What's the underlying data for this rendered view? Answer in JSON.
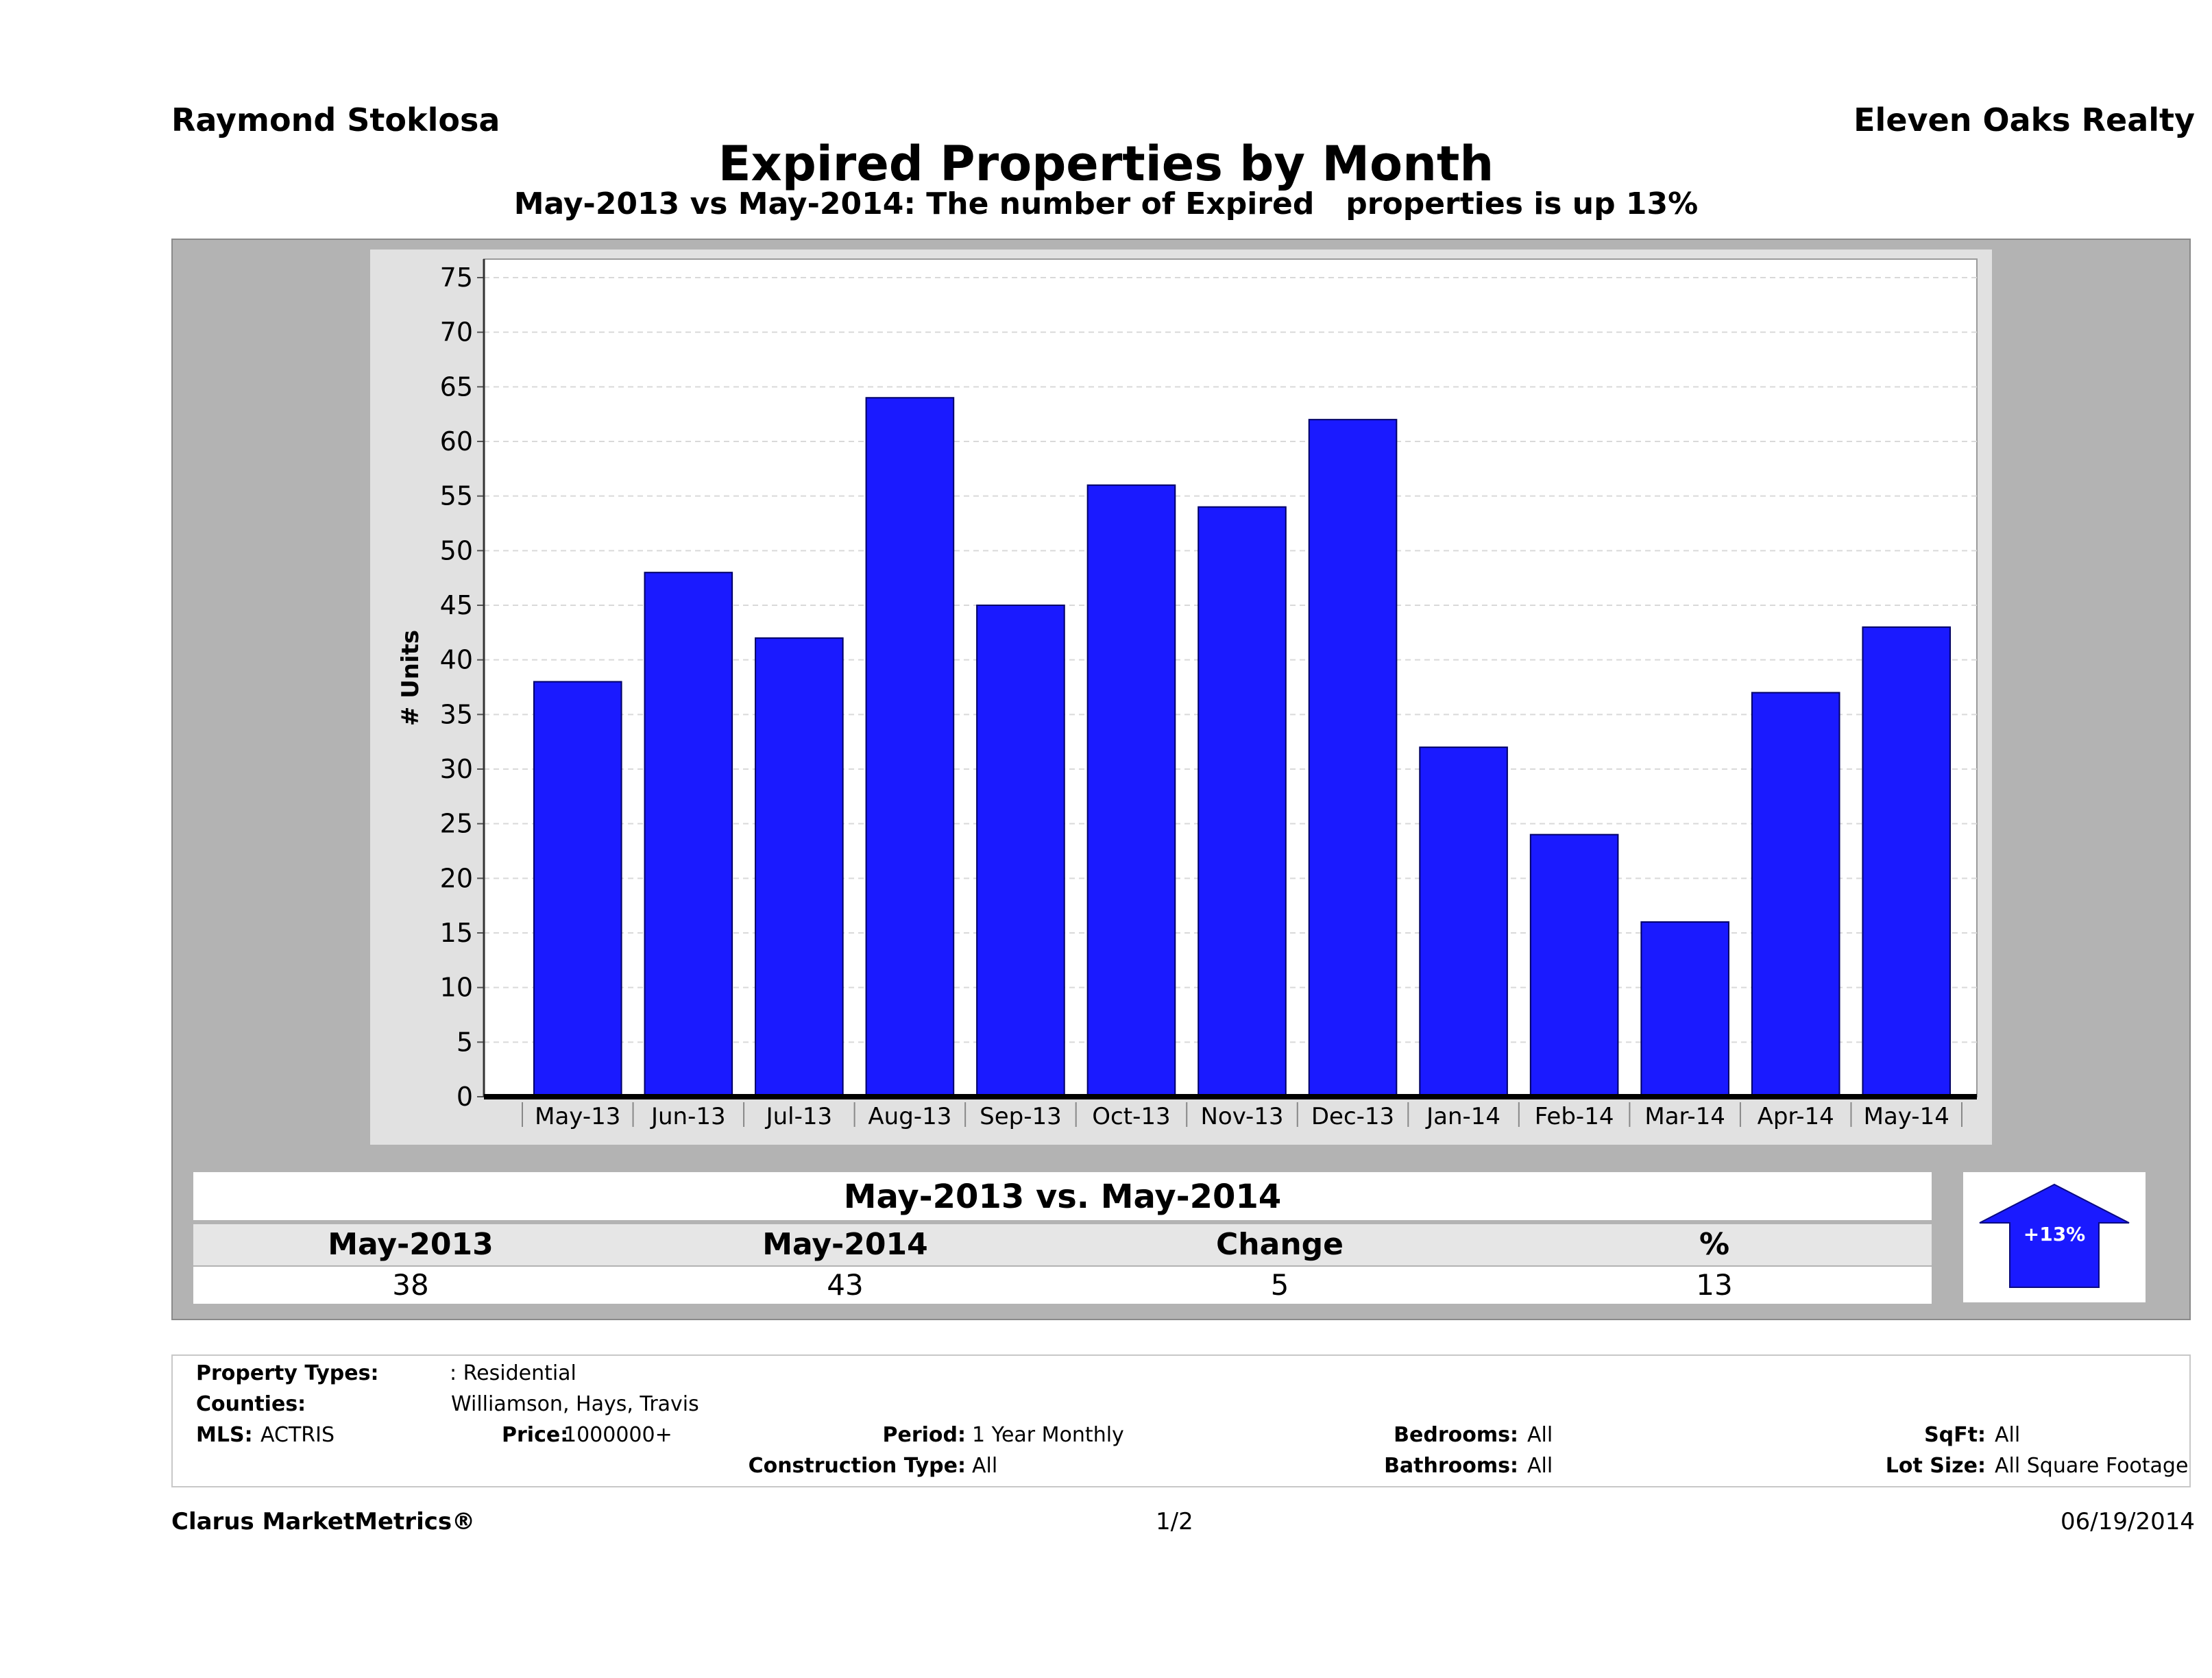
{
  "header": {
    "agent": "Raymond Stoklosa",
    "company": "Eleven Oaks Realty"
  },
  "chart_data": {
    "type": "bar",
    "title": "Expired Properties by Month",
    "subtitle": "May-2013 vs May-2014: The number of Expired   properties is up 13%",
    "ylabel": "# Units",
    "xlabel": "",
    "ylim": [
      0,
      75
    ],
    "yticks": [
      0,
      5,
      10,
      15,
      20,
      25,
      30,
      35,
      40,
      45,
      50,
      55,
      60,
      65,
      70,
      75
    ],
    "categories": [
      "May-13",
      "Jun-13",
      "Jul-13",
      "Aug-13",
      "Sep-13",
      "Oct-13",
      "Nov-13",
      "Dec-13",
      "Jan-14",
      "Feb-14",
      "Mar-14",
      "Apr-14",
      "May-14"
    ],
    "values": [
      38,
      48,
      42,
      64,
      45,
      56,
      54,
      62,
      32,
      24,
      16,
      37,
      43
    ],
    "bar_color": "#1a1aff",
    "grid": true,
    "legend": "none"
  },
  "summary": {
    "title": "May-2013 vs. May-2014",
    "headers": [
      "May-2013",
      "May-2014",
      "Change",
      "%"
    ],
    "values": [
      "38",
      "43",
      "5",
      "13"
    ],
    "badge": "+13%",
    "badge_color": "#1a1aff"
  },
  "criteria": {
    "property_types_label": "Property Types:",
    "property_types_value": ": Residential",
    "counties_label": "Counties:",
    "counties_value": "Williamson, Hays, Travis",
    "mls_label": "MLS:",
    "mls_value": "ACTRIS",
    "price_label": "Price:",
    "price_value": "1000000+",
    "period_label": "Period:",
    "period_value": "1 Year Monthly",
    "construction_label": "Construction Type:",
    "construction_value": "All",
    "bedrooms_label": "Bedrooms:",
    "bedrooms_value": "All",
    "bathrooms_label": "Bathrooms:",
    "bathrooms_value": "All",
    "sqft_label": "SqFt:",
    "sqft_value": "All",
    "lotsize_label": "Lot Size:",
    "lotsize_value": "All Square Footage"
  },
  "footer": {
    "brand": "Clarus MarketMetrics®",
    "page": "1/2",
    "date": "06/19/2014"
  }
}
